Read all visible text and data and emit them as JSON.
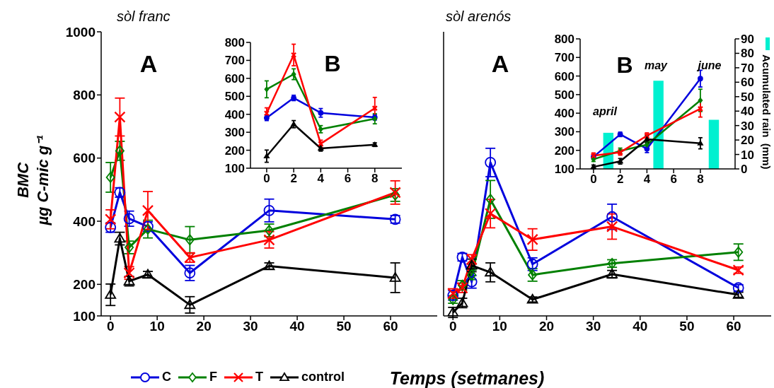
{
  "chart_data": [
    {
      "type": "line",
      "title": "sòl franc",
      "xlabel": "Temps (setmanes)",
      "ylabel": "BMC\nµg C-mic g⁻¹",
      "annotations": [
        "A"
      ],
      "x": [
        0,
        2,
        4,
        8,
        17,
        34,
        61
      ],
      "xlim": [
        -2,
        70
      ],
      "xticks": [
        0,
        10,
        20,
        30,
        40,
        50,
        60
      ],
      "ylim": [
        100,
        1000
      ],
      "yticks": [
        100,
        200,
        400,
        600,
        800,
        1000
      ],
      "legend": "bottom",
      "series": [
        {
          "name": "C",
          "color": "#0000dd",
          "marker": "circle",
          "values": [
            380,
            491,
            408,
            383,
            236,
            434,
            406
          ],
          "errors": [
            15,
            15,
            24,
            15,
            24,
            36,
            12
          ]
        },
        {
          "name": "F",
          "color": "#008000",
          "marker": "diamond",
          "values": [
            539,
            623,
            317,
            375,
            341,
            371,
            483
          ],
          "errors": [
            47,
            30,
            20,
            28,
            42,
            20,
            20
          ]
        },
        {
          "name": "T",
          "color": "#ff0000",
          "marker": "cross",
          "values": [
            406,
            730,
            236,
            434,
            285,
            341,
            491
          ],
          "errors": [
            30,
            60,
            20,
            60,
            15,
            26,
            37
          ]
        },
        {
          "name": "control",
          "color": "#000000",
          "marker": "triangle",
          "values": [
            167,
            345,
            210,
            231,
            135,
            258,
            221
          ],
          "errors": [
            34,
            20,
            15,
            10,
            26,
            10,
            47
          ]
        }
      ]
    },
    {
      "type": "line",
      "annotations": [
        "B"
      ],
      "x": [
        0,
        2,
        4,
        8
      ],
      "xlim": [
        -1.2,
        10
      ],
      "xticks": [
        0,
        2,
        4,
        6,
        8
      ],
      "ylim": [
        100,
        800
      ],
      "yticks": [
        100,
        200,
        300,
        400,
        500,
        600,
        700,
        800
      ],
      "series": [
        {
          "color": "#0000dd",
          "marker": "circle",
          "values": [
            380,
            491,
            408,
            383
          ],
          "errors": [
            15,
            15,
            24,
            15
          ]
        },
        {
          "color": "#008000",
          "marker": "diamond",
          "values": [
            539,
            623,
            317,
            375
          ],
          "errors": [
            47,
            30,
            20,
            28
          ]
        },
        {
          "color": "#ff0000",
          "marker": "cross",
          "values": [
            406,
            730,
            236,
            434
          ],
          "errors": [
            30,
            60,
            20,
            60
          ]
        },
        {
          "color": "#000000",
          "marker": "triangle",
          "values": [
            167,
            345,
            210,
            231
          ],
          "errors": [
            34,
            20,
            15,
            10
          ]
        }
      ]
    },
    {
      "type": "line",
      "title": "sòl arenós",
      "annotations": [
        "A"
      ],
      "x": [
        0,
        2,
        4,
        8,
        17,
        34,
        61
      ],
      "xlim": [
        -2,
        68
      ],
      "xticks": [
        0,
        10,
        20,
        30,
        40,
        50,
        60
      ],
      "ylim": [
        100,
        1000
      ],
      "yticks": [
        100,
        200,
        400,
        600,
        800,
        1000
      ],
      "tick_labels": "x",
      "series": [
        {
          "color": "#0000dd",
          "marker": "circle",
          "values": [
            165,
            286,
            208,
            586,
            264,
            414,
            189
          ],
          "errors": [
            15,
            12,
            20,
            45,
            20,
            40,
            10
          ]
        },
        {
          "color": "#008000",
          "marker": "diamond",
          "values": [
            152,
            197,
            230,
            469,
            230,
            266,
            302
          ],
          "errors": [
            12,
            15,
            15,
            60,
            20,
            12,
            26
          ]
        },
        {
          "color": "#ff0000",
          "marker": "cross",
          "values": [
            171,
            189,
            279,
            424,
            342,
            383,
            245
          ],
          "errors": [
            15,
            15,
            15,
            45,
            34,
            40,
            10
          ]
        },
        {
          "color": "#000000",
          "marker": "triangle",
          "values": [
            111,
            141,
            260,
            238,
            152,
            232,
            167
          ],
          "errors": [
            16,
            15,
            20,
            30,
            8,
            12,
            8
          ]
        }
      ]
    },
    {
      "type": "line",
      "annotations": [
        "B",
        "april",
        "may",
        "june"
      ],
      "y2label": "Acumulated rain  (mm)",
      "xlim": [
        -1,
        10.6
      ],
      "xticks": [
        0,
        2,
        4,
        6,
        8
      ],
      "ylim": [
        100,
        800
      ],
      "yticks": [
        100,
        200,
        300,
        400,
        500,
        600,
        700,
        800
      ],
      "y2lim": [
        0,
        90
      ],
      "y2ticks": [
        0,
        10,
        20,
        30,
        40,
        50,
        60,
        70,
        80,
        90
      ],
      "series": [
        {
          "type": "bar",
          "axis": "y2",
          "color": "#00f0d0",
          "x": [
            1.1,
            4.85,
            9.0
          ],
          "values": [
            25,
            61,
            34
          ]
        },
        {
          "color": "#0000dd",
          "marker": "circle",
          "x": [
            0,
            2,
            4,
            8
          ],
          "values": [
            165,
            286,
            208,
            586
          ],
          "errors": [
            null,
            12,
            20,
            45
          ]
        },
        {
          "color": "#008000",
          "marker": "diamond",
          "x": [
            0,
            2,
            4,
            8
          ],
          "values": [
            152,
            197,
            230,
            469
          ],
          "errors": [
            12,
            15,
            15,
            60
          ]
        },
        {
          "color": "#ff0000",
          "marker": "cross",
          "x": [
            0,
            2,
            4,
            8
          ],
          "values": [
            171,
            189,
            279,
            424
          ],
          "errors": [
            15,
            15,
            15,
            45
          ]
        },
        {
          "color": "#000000",
          "marker": "triangle",
          "x": [
            0,
            2,
            4,
            8
          ],
          "values": [
            111,
            141,
            260,
            238
          ],
          "errors": [
            10,
            15,
            20,
            30
          ]
        }
      ]
    }
  ]
}
